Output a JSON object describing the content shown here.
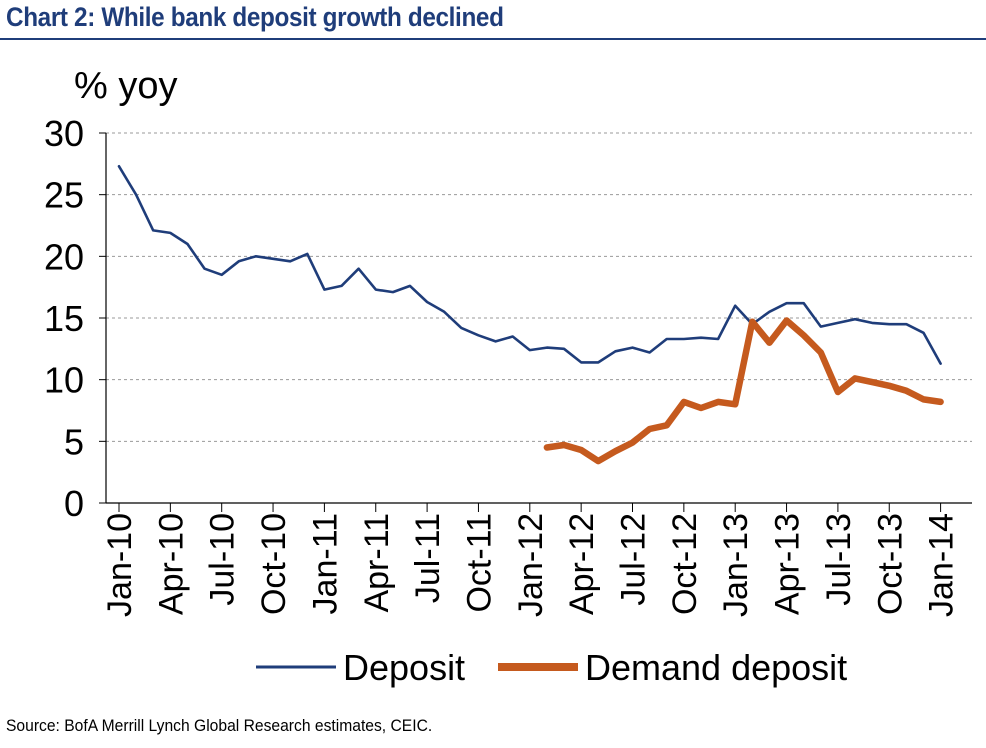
{
  "title": "Chart 2: While bank deposit growth declined",
  "source": "Source: BofA Merrill Lynch Global Research estimates, CEIC.",
  "chart_data": {
    "type": "line",
    "title": "Chart 2: While bank deposit growth declined",
    "ylabel": "% yoy",
    "xlabel": "",
    "ylim": [
      0,
      30
    ],
    "yticks": [
      "0",
      "5",
      "10",
      "15",
      "20",
      "25",
      "30"
    ],
    "grid": true,
    "legend_position": "bottom",
    "x_tick_labels": [
      "Jan-10",
      "Apr-10",
      "Jul-10",
      "Oct-10",
      "Jan-11",
      "Apr-11",
      "Jul-11",
      "Oct-11",
      "Jan-12",
      "Apr-12",
      "Jul-12",
      "Oct-12",
      "Jan-13",
      "Apr-13",
      "Jul-13",
      "Oct-13",
      "Jan-14"
    ],
    "x_months": [
      "2010-01",
      "2010-02",
      "2010-03",
      "2010-04",
      "2010-05",
      "2010-06",
      "2010-07",
      "2010-08",
      "2010-09",
      "2010-10",
      "2010-11",
      "2010-12",
      "2011-01",
      "2011-02",
      "2011-03",
      "2011-04",
      "2011-05",
      "2011-06",
      "2011-07",
      "2011-08",
      "2011-09",
      "2011-10",
      "2011-11",
      "2011-12",
      "2012-01",
      "2012-02",
      "2012-03",
      "2012-04",
      "2012-05",
      "2012-06",
      "2012-07",
      "2012-08",
      "2012-09",
      "2012-10",
      "2012-11",
      "2012-12",
      "2013-01",
      "2013-02",
      "2013-03",
      "2013-04",
      "2013-05",
      "2013-06",
      "2013-07",
      "2013-08",
      "2013-09",
      "2013-10",
      "2013-11",
      "2013-12",
      "2014-01"
    ],
    "series": [
      {
        "name": "Deposit",
        "color": "#1f3d7a",
        "values": [
          27.3,
          25.0,
          22.1,
          21.9,
          21.0,
          19.0,
          18.5,
          19.6,
          20.0,
          19.8,
          19.6,
          20.2,
          17.3,
          17.6,
          19.0,
          17.3,
          17.1,
          17.6,
          16.3,
          15.5,
          14.2,
          13.6,
          13.1,
          13.5,
          12.4,
          12.6,
          12.5,
          11.4,
          11.4,
          12.3,
          12.6,
          12.2,
          13.3,
          13.3,
          13.4,
          13.3,
          16.0,
          14.5,
          15.5,
          16.2,
          16.2,
          14.3,
          14.6,
          14.9,
          14.6,
          14.5,
          14.5,
          13.8,
          11.3
        ]
      },
      {
        "name": "Demand deposit",
        "color": "#c55a1e",
        "values": [
          null,
          null,
          null,
          null,
          null,
          null,
          null,
          null,
          null,
          null,
          null,
          null,
          null,
          null,
          null,
          null,
          null,
          null,
          null,
          null,
          null,
          null,
          null,
          null,
          null,
          4.5,
          4.7,
          4.3,
          3.4,
          4.2,
          4.9,
          6.0,
          6.3,
          8.2,
          7.7,
          8.2,
          8.0,
          14.7,
          13.0,
          14.8,
          13.6,
          12.2,
          9.0,
          10.1,
          9.8,
          9.5,
          9.1,
          8.4,
          8.2
        ]
      }
    ]
  }
}
